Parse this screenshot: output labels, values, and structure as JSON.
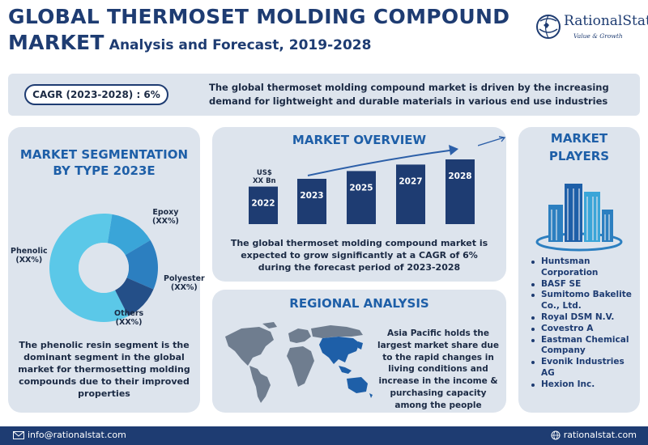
{
  "header": {
    "title_line1": "GLOBAL THERMOSET MOLDING COMPOUND",
    "title_line2_big": "MARKET",
    "title_line2_small": "Analysis and Forecast, 2019-2028"
  },
  "logo": {
    "name": "RationalStat",
    "tagline": "Value & Growth",
    "icon": "globe-icon"
  },
  "cagr": {
    "label": "CAGR (2023-2028) : 6%",
    "text": "The global thermoset molding compound market is driven by the increasing demand for lightweight and durable materials in various end use industries"
  },
  "segmentation": {
    "title_line1": "MARKET SEGMENTATION",
    "title_line2": "BY TYPE 2023E",
    "description": "The phenolic resin segment is the dominant segment in the global market for thermosetting molding compounds due to their improved properties",
    "labels": {
      "epoxy": "Epoxy",
      "epoxy_value": "(XX%)",
      "polyester": "Polyester",
      "polyester_value": "(XX%)",
      "others": "Others",
      "others_value": "(XX%)",
      "phenolic": "Phenolic",
      "phenolic_value": "(XX%)"
    },
    "colors": {
      "phenolic": "#5bc8e8",
      "epoxy": "#3aa5d8",
      "polyester": "#2c7fc0",
      "others": "#244f88"
    }
  },
  "chart_data": {
    "type": "pie",
    "categories": [
      "Phenolic",
      "Epoxy",
      "Polyester",
      "Others"
    ],
    "value_labels": [
      "(XX%)",
      "(XX%)",
      "(XX%)",
      "(XX%)"
    ],
    "values": [
      60,
      14,
      15,
      11
    ],
    "title": "MARKET SEGMENTATION BY TYPE 2023E",
    "legend": "none"
  },
  "overview": {
    "title": "MARKET OVERVIEW",
    "currency_line1": "US$",
    "currency_line2": "XX Bn",
    "years": [
      "2022",
      "2023",
      "2025",
      "2027",
      "2028"
    ],
    "relative_heights": [
      0.58,
      0.7,
      0.82,
      0.92,
      1.0
    ],
    "description": "The global thermoset molding compound market is expected to grow significantly at a CAGR of 6% during the forecast period of 2023-2028",
    "bar_color": "#1e3c72",
    "arrow_color": "#2c5fa8"
  },
  "regional": {
    "title": "REGIONAL ANALYSIS",
    "description": "Asia Pacific holds the largest market share due to the rapid changes in living conditions and increase in the income & purchasing capacity among the people",
    "map_icon": "world-map-icon",
    "highlight_color": "#1e5fa8"
  },
  "players": {
    "title_line1": "MARKET",
    "title_line2": "PLAYERS",
    "icon": "buildings-icon",
    "items": [
      "Huntsman Corporation",
      "BASF SE",
      "Sumitomo Bakelite Co., Ltd.",
      "Royal DSM N.V.",
      "Covestro A",
      "Eastman Chemical Company",
      "Evonik Industries AG",
      "Hexion Inc."
    ]
  },
  "footer": {
    "email": "info@rationalstat.com",
    "website": "rationalstat.com",
    "email_icon": "email-icon",
    "website_icon": "globe-icon"
  },
  "colors": {
    "navy": "#1e3c72",
    "accent_blue": "#1e5fa8",
    "card_bg": "#dde4ed"
  }
}
